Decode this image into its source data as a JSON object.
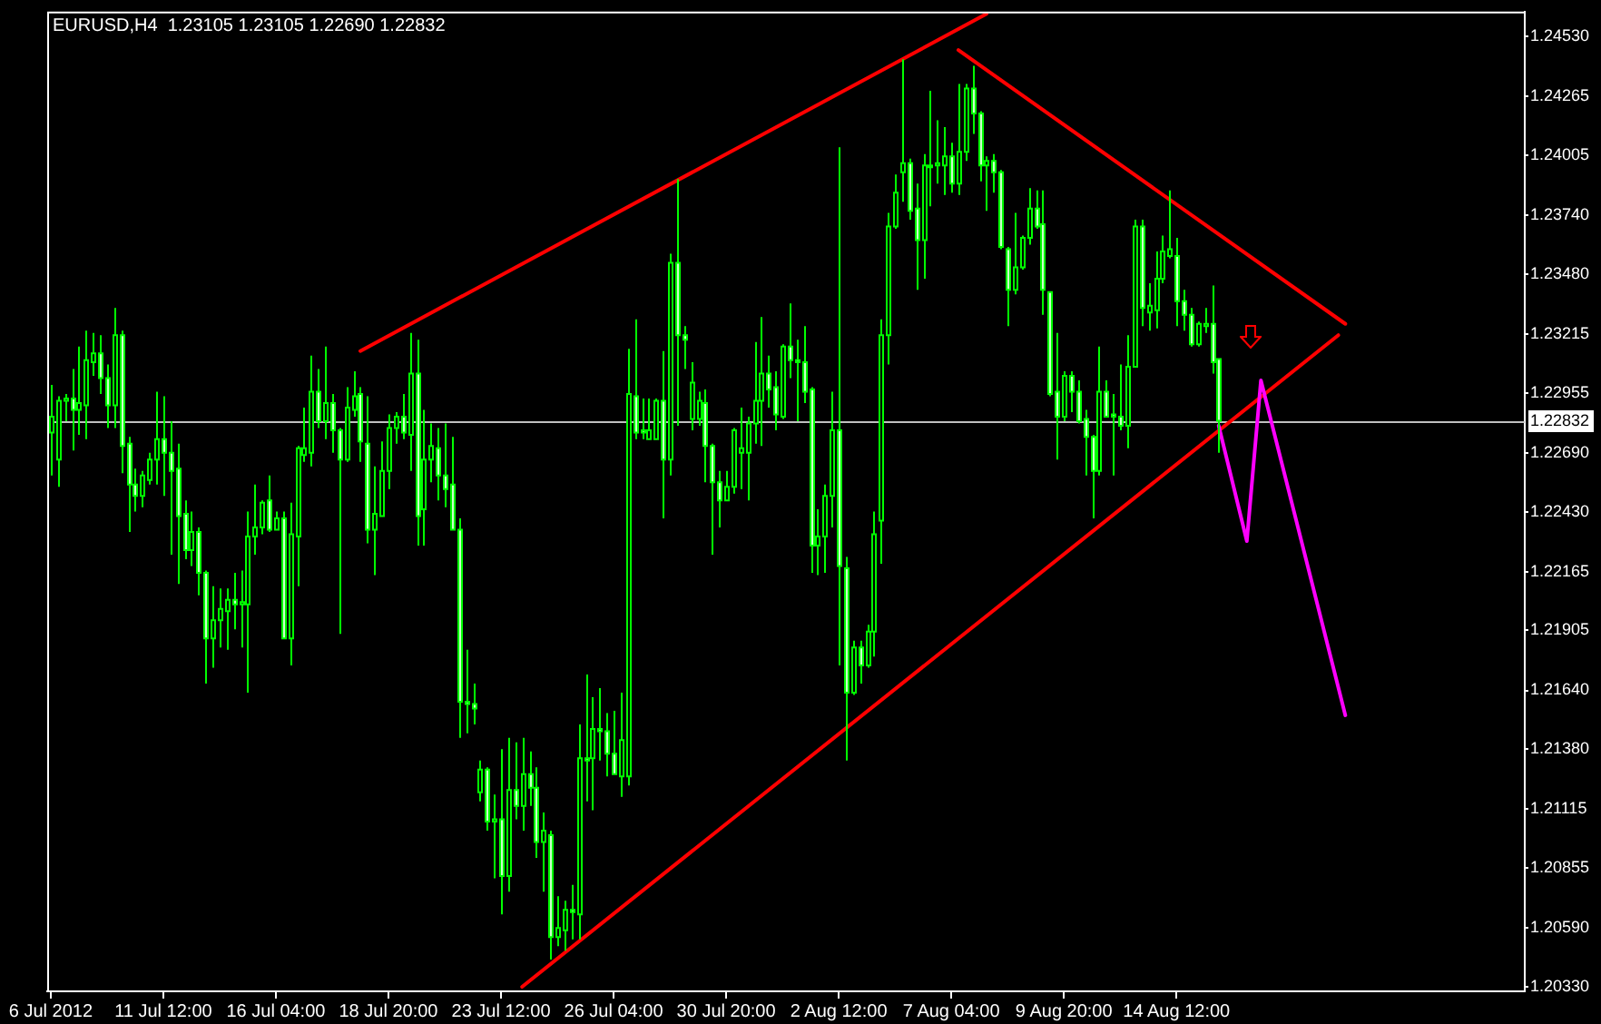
{
  "chart_data": {
    "type": "candlestick",
    "title": "EURUSD,H4  1.23105 1.23105 1.22690 1.22832",
    "color": "#00ff00",
    "categories": [
      "6 Jul 2012",
      null,
      null,
      null,
      null,
      null,
      null,
      null,
      null,
      null,
      null,
      null,
      null,
      null,
      null,
      null,
      "11 Jul 12:00",
      null,
      null,
      null,
      null,
      null,
      null,
      null,
      null,
      null,
      null,
      null,
      null,
      null,
      null,
      null,
      "16 Jul 04:00",
      null,
      null,
      null,
      null,
      null,
      null,
      null,
      null,
      null,
      null,
      null,
      null,
      null,
      null,
      null,
      "18 Jul 20:00",
      null,
      null,
      null,
      null,
      null,
      null,
      null,
      null,
      null,
      null,
      null,
      null,
      null,
      null,
      null,
      "23 Jul 12:00",
      null,
      null,
      null,
      null,
      null,
      null,
      null,
      null,
      null,
      null,
      null,
      null,
      null,
      null,
      null,
      "26 Jul 04:00",
      null,
      null,
      null,
      null,
      null,
      null,
      null,
      null,
      null,
      null,
      null,
      null,
      null,
      null,
      null,
      "30 Jul 20:00",
      null,
      null,
      null,
      null,
      null,
      null,
      null,
      null,
      null,
      null,
      null,
      null,
      null,
      null,
      null,
      "2 Aug 12:00",
      null,
      null,
      null,
      null,
      null,
      null,
      null,
      null,
      null,
      null,
      null,
      null,
      null,
      null,
      null,
      "7 Aug 04:00",
      null,
      null,
      null,
      null,
      null,
      null,
      null,
      null,
      null,
      null,
      null,
      null,
      null,
      null,
      null,
      "9 Aug 20:00",
      null,
      null,
      null,
      null,
      null,
      null,
      null,
      null,
      null,
      null,
      null,
      null,
      null,
      null,
      null,
      "14 Aug 12:00",
      null,
      null,
      null,
      null,
      null,
      null,
      null,
      null,
      null,
      null,
      null,
      null,
      null,
      null,
      null,
      null,
      null,
      null,
      null,
      null,
      null,
      null,
      null,
      null,
      null,
      null,
      null,
      null,
      null,
      null,
      null,
      null,
      null,
      null,
      null,
      null,
      null,
      null,
      null,
      null,
      null,
      null,
      null,
      null,
      null,
      null,
      null,
      null,
      null
    ],
    "ohlc": [
      [
        1.2278,
        1.2299,
        1.2259,
        1.2285
      ],
      [
        1.2266,
        1.2294,
        1.2254,
        1.2292
      ],
      [
        1.2292,
        1.2295,
        1.2283,
        1.2293
      ],
      [
        1.2293,
        1.2306,
        1.227,
        1.2288
      ],
      [
        1.2288,
        1.2316,
        1.2277,
        1.2291
      ],
      [
        1.229,
        1.2323,
        1.2275,
        1.231
      ],
      [
        1.2309,
        1.2322,
        1.2303,
        1.2313
      ],
      [
        1.2313,
        1.2321,
        1.2295,
        1.2302
      ],
      [
        1.2302,
        1.2308,
        1.228,
        1.229
      ],
      [
        1.229,
        1.2333,
        1.228,
        1.2321
      ],
      [
        1.2321,
        1.2323,
        1.226,
        1.2272
      ],
      [
        1.2273,
        1.2276,
        1.2234,
        1.2255
      ],
      [
        1.2255,
        1.2262,
        1.2243,
        1.225
      ],
      [
        1.225,
        1.2261,
        1.2245,
        1.2259
      ],
      [
        1.2257,
        1.2269,
        1.2255,
        1.2266
      ],
      [
        1.2266,
        1.2296,
        1.2255,
        1.2275
      ],
      [
        1.2275,
        1.2294,
        1.225,
        1.2269
      ],
      [
        1.2269,
        1.2283,
        1.2224,
        1.2261
      ],
      [
        1.2262,
        1.2273,
        1.2211,
        1.2241
      ],
      [
        1.2242,
        1.2248,
        1.2222,
        1.2226
      ],
      [
        1.2226,
        1.2243,
        1.2219,
        1.2234
      ],
      [
        1.2234,
        1.2236,
        1.2206,
        1.2216
      ],
      [
        1.2216,
        1.2217,
        1.2167,
        1.2187
      ],
      [
        1.2187,
        1.221,
        1.2174,
        1.2195
      ],
      [
        1.2195,
        1.2209,
        1.2183,
        1.22
      ],
      [
        1.2199,
        1.2209,
        1.2182,
        1.2204
      ],
      [
        1.2204,
        1.2216,
        1.2191,
        1.2202
      ],
      [
        1.2202,
        1.2217,
        1.2183,
        1.2203
      ],
      [
        1.2202,
        1.2243,
        1.2163,
        1.2232
      ],
      [
        1.2232,
        1.2255,
        1.2224,
        1.2236
      ],
      [
        1.2236,
        1.2248,
        1.2233,
        1.2247
      ],
      [
        1.2248,
        1.2259,
        1.2234,
        1.2235
      ],
      [
        1.2235,
        1.2243,
        1.2235,
        1.224
      ],
      [
        1.224,
        1.2243,
        1.2187,
        1.2187
      ],
      [
        1.2187,
        1.2247,
        1.2175,
        1.2233
      ],
      [
        1.2232,
        1.2272,
        1.221,
        1.2271
      ],
      [
        1.2268,
        1.2289,
        1.2265,
        1.2271
      ],
      [
        1.2269,
        1.2312,
        1.2263,
        1.2296
      ],
      [
        1.2296,
        1.2306,
        1.228,
        1.2283
      ],
      [
        1.2283,
        1.2316,
        1.2275,
        1.2291
      ],
      [
        1.2291,
        1.2295,
        1.2269,
        1.2279
      ],
      [
        1.2279,
        1.228,
        1.2189,
        1.2266
      ],
      [
        1.2266,
        1.2298,
        1.2265,
        1.2289
      ],
      [
        1.2288,
        1.2305,
        1.2285,
        1.2294
      ],
      [
        1.2295,
        1.2298,
        1.2265,
        1.2274
      ],
      [
        1.2273,
        1.2294,
        1.2229,
        1.2235
      ],
      [
        1.2235,
        1.2263,
        1.2215,
        1.2242
      ],
      [
        1.2241,
        1.2274,
        1.2241,
        1.2261
      ],
      [
        1.2261,
        1.2286,
        1.2253,
        1.228
      ],
      [
        1.228,
        1.2287,
        1.2273,
        1.2285
      ],
      [
        1.2285,
        1.2295,
        1.2275,
        1.2278
      ],
      [
        1.2277,
        1.2322,
        1.2261,
        1.2304
      ],
      [
        1.2304,
        1.2319,
        1.2228,
        1.2241
      ],
      [
        1.2244,
        1.2288,
        1.2228,
        1.2266
      ],
      [
        1.2266,
        1.2282,
        1.2256,
        1.2272
      ],
      [
        1.2271,
        1.228,
        1.2248,
        1.2259
      ],
      [
        1.2259,
        1.2282,
        1.2245,
        1.2253
      ],
      [
        1.2255,
        1.2276,
        1.2235,
        1.2235
      ],
      [
        1.2235,
        1.224,
        1.2143,
        1.2159
      ],
      [
        1.2159,
        1.2182,
        1.2145,
        1.2158
      ],
      [
        1.2158,
        1.2167,
        1.2149,
        1.2156
      ],
      [
        1.2119,
        1.2133,
        1.2115,
        1.2129
      ],
      [
        1.2129,
        1.213,
        1.2102,
        1.2106
      ],
      [
        1.2106,
        1.2118,
        1.2081,
        1.2107
      ],
      [
        1.2107,
        1.2138,
        1.2065,
        1.2082
      ],
      [
        1.2082,
        1.2143,
        1.2075,
        1.212
      ],
      [
        1.212,
        1.2141,
        1.2107,
        1.2113
      ],
      [
        1.2113,
        1.2143,
        1.2102,
        1.2127
      ],
      [
        1.2127,
        1.2137,
        1.2113,
        1.2121
      ],
      [
        1.2121,
        1.213,
        1.209,
        1.2097
      ],
      [
        1.2097,
        1.211,
        1.2075,
        1.2102
      ],
      [
        1.21,
        1.2102,
        1.2045,
        1.2055
      ],
      [
        1.2055,
        1.2073,
        1.2051,
        1.2059
      ],
      [
        1.2058,
        1.2071,
        1.2049,
        1.2067
      ],
      [
        1.2067,
        1.2078,
        1.2054,
        1.2066
      ],
      [
        1.2065,
        1.2149,
        1.2054,
        1.2134
      ],
      [
        1.2134,
        1.2171,
        1.2115,
        1.2133
      ],
      [
        1.2134,
        1.2161,
        1.2111,
        1.2147
      ],
      [
        1.2147,
        1.2165,
        1.2133,
        1.2146
      ],
      [
        1.2146,
        1.2154,
        1.2126,
        1.2136
      ],
      [
        1.2136,
        1.2155,
        1.2127,
        1.2127
      ],
      [
        1.2126,
        1.2163,
        1.2117,
        1.2142
      ],
      [
        1.2126,
        1.2315,
        1.2122,
        1.2295
      ],
      [
        1.2294,
        1.2328,
        1.2275,
        1.2278
      ],
      [
        1.2279,
        1.2293,
        1.2275,
        1.2278
      ],
      [
        1.2275,
        1.2293,
        1.2275,
        1.2279
      ],
      [
        1.2275,
        1.2293,
        1.2275,
        1.2292
      ],
      [
        1.2292,
        1.2314,
        1.224,
        1.2266
      ],
      [
        1.2266,
        1.2357,
        1.2259,
        1.2353
      ],
      [
        1.2353,
        1.239,
        1.2281,
        1.2321
      ],
      [
        1.2321,
        1.2325,
        1.2306,
        1.2319
      ],
      [
        1.2284,
        1.2309,
        1.2279,
        1.23
      ],
      [
        1.2284,
        1.2296,
        1.2281,
        1.2292
      ],
      [
        1.2291,
        1.2297,
        1.2256,
        1.2272
      ],
      [
        1.2272,
        1.2273,
        1.2224,
        1.2256
      ],
      [
        1.2256,
        1.2261,
        1.2236,
        1.2248
      ],
      [
        1.2248,
        1.2261,
        1.2248,
        1.2254
      ],
      [
        1.2254,
        1.228,
        1.2251,
        1.2279
      ],
      [
        1.2269,
        1.2289,
        1.2253,
        1.2271
      ],
      [
        1.2269,
        1.2285,
        1.2248,
        1.2282
      ],
      [
        1.2282,
        1.2318,
        1.2273,
        1.2292
      ],
      [
        1.2292,
        1.2329,
        1.2272,
        1.2304
      ],
      [
        1.2304,
        1.2312,
        1.2289,
        1.2297
      ],
      [
        1.2298,
        1.2305,
        1.2279,
        1.2286
      ],
      [
        1.2285,
        1.2317,
        1.2284,
        1.2316
      ],
      [
        1.2316,
        1.2335,
        1.2302,
        1.231
      ],
      [
        1.231,
        1.2319,
        1.2283,
        1.2309
      ],
      [
        1.2309,
        1.2325,
        1.2291,
        1.2296
      ],
      [
        1.2297,
        1.2298,
        1.2216,
        1.2228
      ],
      [
        1.2228,
        1.2244,
        1.2215,
        1.2232
      ],
      [
        1.2232,
        1.2255,
        1.2216,
        1.225
      ],
      [
        1.225,
        1.2296,
        1.2236,
        1.2279
      ],
      [
        1.2279,
        1.2404,
        1.2175,
        1.2219
      ],
      [
        1.2218,
        1.2223,
        1.2133,
        1.2163
      ],
      [
        1.2163,
        1.2186,
        1.2162,
        1.2183
      ],
      [
        1.2183,
        1.2186,
        1.2167,
        1.2175
      ],
      [
        1.2175,
        1.2193,
        1.2174,
        1.219
      ],
      [
        1.219,
        1.2243,
        1.2179,
        1.2233
      ],
      [
        1.2239,
        1.2328,
        1.222,
        1.2321
      ],
      [
        1.2321,
        1.2375,
        1.2308,
        1.2369
      ],
      [
        1.2369,
        1.2392,
        1.2368,
        1.2384
      ],
      [
        1.2393,
        1.2443,
        1.238,
        1.2397
      ],
      [
        1.2397,
        1.2399,
        1.2372,
        1.2376
      ],
      [
        1.2377,
        1.2388,
        1.2341,
        1.2363
      ],
      [
        1.2363,
        1.2401,
        1.2346,
        1.2396
      ],
      [
        1.2396,
        1.2429,
        1.2378,
        1.2396
      ],
      [
        1.2396,
        1.2416,
        1.2388,
        1.2397
      ],
      [
        1.2396,
        1.2413,
        1.2383,
        1.24
      ],
      [
        1.24,
        1.2406,
        1.2384,
        1.2388
      ],
      [
        1.2388,
        1.2432,
        1.2383,
        1.2402
      ],
      [
        1.2402,
        1.2432,
        1.2398,
        1.243
      ],
      [
        1.243,
        1.244,
        1.241,
        1.2419
      ],
      [
        1.2419,
        1.242,
        1.2389,
        1.2396
      ],
      [
        1.2396,
        1.24,
        1.2376,
        1.2398
      ],
      [
        1.2398,
        1.2401,
        1.2384,
        1.2393
      ],
      [
        1.2393,
        1.2394,
        1.2359,
        1.236
      ],
      [
        1.2359,
        1.236,
        1.2325,
        1.2341
      ],
      [
        1.2341,
        1.2375,
        1.2339,
        1.2351
      ],
      [
        1.2351,
        1.2365,
        1.235,
        1.2364
      ],
      [
        1.2364,
        1.2386,
        1.2361,
        1.2377
      ],
      [
        1.2377,
        1.2385,
        1.2368,
        1.2369
      ],
      [
        1.237,
        1.2385,
        1.233,
        1.2341
      ],
      [
        1.234,
        1.234,
        1.2294,
        1.2295
      ],
      [
        1.2296,
        1.2322,
        1.2266,
        1.2285
      ],
      [
        1.2285,
        1.2305,
        1.2283,
        1.2303
      ],
      [
        1.2303,
        1.2305,
        1.2287,
        1.2296
      ],
      [
        1.2296,
        1.2301,
        1.2282,
        1.2283
      ],
      [
        1.2284,
        1.2288,
        1.2259,
        1.2276
      ],
      [
        1.2276,
        1.2277,
        1.224,
        1.2261
      ],
      [
        1.2261,
        1.2316,
        1.2259,
        1.2296
      ],
      [
        1.2296,
        1.2301,
        1.2285,
        1.2285
      ],
      [
        1.2286,
        1.2295,
        1.2259,
        1.2285
      ],
      [
        1.2285,
        1.2308,
        1.2279,
        1.2281
      ],
      [
        1.2281,
        1.2321,
        1.2271,
        1.2307
      ],
      [
        1.2307,
        1.2372,
        1.2307,
        1.2369
      ],
      [
        1.2369,
        1.2372,
        1.2325,
        1.2333
      ],
      [
        1.2331,
        1.2344,
        1.2323,
        1.2334
      ],
      [
        1.2332,
        1.2358,
        1.2324,
        1.2346
      ],
      [
        1.2346,
        1.2365,
        1.2344,
        1.2358
      ],
      [
        1.2356,
        1.2385,
        1.2355,
        1.2359
      ],
      [
        1.2356,
        1.2364,
        1.2325,
        1.2336
      ],
      [
        1.2336,
        1.2341,
        1.2323,
        1.233
      ],
      [
        1.233,
        1.2333,
        1.2316,
        1.2317
      ],
      [
        1.2317,
        1.2327,
        1.2316,
        1.2326
      ],
      [
        1.2325,
        1.2333,
        1.2322,
        1.2326
      ],
      [
        1.2326,
        1.2343,
        1.2304,
        1.2309
      ],
      [
        1.23105,
        1.23105,
        1.2269,
        1.22832
      ],
      null,
      null,
      null,
      null,
      null,
      null,
      null,
      null,
      null,
      null,
      null,
      null,
      null,
      null,
      null,
      null,
      null,
      null,
      null,
      null,
      null,
      null,
      null,
      null,
      null,
      null,
      null,
      null,
      null,
      null,
      null,
      null,
      null,
      null,
      null,
      null,
      null,
      null,
      null,
      null,
      null,
      null,
      null
    ],
    "series": [
      {
        "type": "line",
        "color": "#ff0000",
        "values": [
          null,
          null,
          null,
          null,
          null,
          null,
          null,
          null,
          null,
          null,
          null,
          null,
          null,
          null,
          null,
          null,
          null,
          null,
          null,
          null,
          null,
          null,
          null,
          null,
          null,
          null,
          null,
          null,
          null,
          null,
          null,
          null,
          null,
          null,
          null,
          null,
          null,
          null,
          null,
          null,
          null,
          null,
          null,
          null,
          1.2314,
          null,
          null,
          null,
          null,
          null,
          null,
          null,
          null,
          null,
          null,
          null,
          null,
          null,
          null,
          null,
          null,
          null,
          null,
          null,
          null,
          null,
          null,
          null,
          null,
          null,
          null,
          null,
          null,
          null,
          null,
          null,
          null,
          null,
          null,
          null,
          null,
          null,
          null,
          null,
          null,
          null,
          null,
          null,
          null,
          null,
          null,
          null,
          null,
          null,
          null,
          null,
          null,
          null,
          null,
          null,
          null,
          null,
          null,
          null,
          null,
          null,
          null,
          null,
          null,
          null,
          null,
          null,
          null,
          null,
          null,
          null,
          null,
          null,
          null,
          null,
          null,
          null,
          null,
          null,
          null,
          null,
          null,
          null,
          null,
          null,
          null,
          null,
          null,
          1.2463,
          null,
          null,
          null,
          null,
          null,
          null,
          null,
          null,
          null,
          null,
          null,
          null,
          null,
          null,
          null,
          null,
          null,
          null,
          null,
          null,
          null,
          null,
          null,
          null,
          null,
          null,
          null,
          null,
          null,
          null,
          null,
          null,
          null,
          null,
          null,
          null,
          null,
          null,
          null,
          null,
          null,
          null,
          null,
          null,
          null,
          null,
          null,
          null,
          null,
          null,
          null,
          null,
          null,
          null,
          null,
          null,
          null,
          null,
          null,
          null,
          null,
          null,
          null,
          null,
          null,
          null,
          null,
          null,
          null,
          null,
          null,
          null,
          null,
          null,
          null,
          null
        ]
      },
      {
        "type": "line",
        "color": "#ff0000",
        "values": [
          null,
          null,
          null,
          null,
          null,
          null,
          null,
          null,
          null,
          null,
          null,
          null,
          null,
          null,
          null,
          null,
          null,
          null,
          null,
          null,
          null,
          null,
          null,
          null,
          null,
          null,
          null,
          null,
          null,
          null,
          null,
          null,
          null,
          null,
          null,
          null,
          null,
          null,
          null,
          null,
          null,
          null,
          null,
          null,
          null,
          null,
          null,
          null,
          null,
          null,
          null,
          null,
          null,
          null,
          null,
          null,
          null,
          null,
          null,
          null,
          null,
          null,
          null,
          null,
          null,
          null,
          null,
          null,
          null,
          null,
          null,
          null,
          null,
          null,
          null,
          null,
          null,
          null,
          null,
          null,
          null,
          null,
          null,
          null,
          null,
          null,
          null,
          null,
          null,
          null,
          null,
          null,
          null,
          null,
          null,
          null,
          null,
          null,
          null,
          null,
          null,
          null,
          null,
          null,
          null,
          null,
          null,
          null,
          null,
          null,
          null,
          null,
          null,
          null,
          null,
          null,
          null,
          null,
          null,
          null,
          null,
          null,
          null,
          null,
          null,
          null,
          null,
          null,
          null,
          1.2447,
          null,
          null,
          null,
          null,
          null,
          null,
          null,
          null,
          null,
          null,
          null,
          null,
          null,
          null,
          null,
          null,
          null,
          null,
          null,
          null,
          null,
          null,
          null,
          null,
          null,
          null,
          null,
          null,
          null,
          null,
          null,
          null,
          null,
          null,
          null,
          null,
          null,
          null,
          null,
          null,
          null,
          null,
          null,
          null,
          null,
          null,
          null,
          null,
          null,
          null,
          null,
          null,
          null,
          null,
          1.2326,
          null,
          null,
          null,
          null,
          null,
          null,
          null,
          null,
          null,
          null,
          null,
          null,
          null,
          null,
          null,
          null,
          null,
          null,
          null,
          null,
          null,
          null,
          null,
          null,
          null
        ]
      },
      {
        "type": "line",
        "color": "#ff0000",
        "values": [
          null,
          null,
          null,
          null,
          null,
          null,
          null,
          null,
          null,
          null,
          null,
          null,
          null,
          null,
          null,
          null,
          null,
          null,
          null,
          null,
          null,
          null,
          null,
          null,
          null,
          null,
          null,
          null,
          null,
          null,
          null,
          null,
          null,
          null,
          null,
          null,
          null,
          null,
          null,
          null,
          null,
          null,
          null,
          null,
          null,
          null,
          null,
          null,
          null,
          null,
          null,
          null,
          null,
          null,
          null,
          null,
          null,
          null,
          null,
          null,
          null,
          null,
          null,
          null,
          null,
          null,
          null,
          1.2033,
          null,
          null,
          null,
          null,
          null,
          null,
          null,
          null,
          null,
          null,
          null,
          null,
          null,
          null,
          null,
          null,
          null,
          null,
          null,
          null,
          null,
          null,
          null,
          null,
          null,
          null,
          null,
          null,
          null,
          null,
          null,
          null,
          null,
          null,
          null,
          null,
          null,
          null,
          null,
          null,
          null,
          null,
          null,
          null,
          null,
          null,
          null,
          null,
          null,
          null,
          null,
          null,
          null,
          null,
          null,
          null,
          null,
          null,
          null,
          null,
          null,
          null,
          null,
          null,
          null,
          null,
          null,
          null,
          null,
          null,
          null,
          null,
          null,
          null,
          null,
          null,
          null,
          null,
          null,
          null,
          null,
          null,
          null,
          null,
          null,
          null,
          null,
          null,
          null,
          null,
          null,
          null,
          null,
          null,
          null,
          null,
          null,
          null,
          null,
          null,
          null,
          null,
          null,
          null,
          null,
          null,
          null,
          null,
          null,
          null,
          null,
          null,
          null,
          null,
          null,
          1.2321,
          null,
          null,
          null,
          null,
          null,
          null,
          null,
          null,
          null,
          null,
          null,
          null,
          null,
          null,
          null,
          null,
          null,
          null,
          null,
          null,
          null,
          null,
          null,
          null,
          null,
          null
        ]
      },
      {
        "type": "line",
        "color": "#ff00ff",
        "values": [
          null,
          null,
          null,
          null,
          null,
          null,
          null,
          null,
          null,
          null,
          null,
          null,
          null,
          null,
          null,
          null,
          null,
          null,
          null,
          null,
          null,
          null,
          null,
          null,
          null,
          null,
          null,
          null,
          null,
          null,
          null,
          null,
          null,
          null,
          null,
          null,
          null,
          null,
          null,
          null,
          null,
          null,
          null,
          null,
          null,
          null,
          null,
          null,
          null,
          null,
          null,
          null,
          null,
          null,
          null,
          null,
          null,
          null,
          null,
          null,
          null,
          null,
          null,
          null,
          null,
          null,
          null,
          null,
          null,
          null,
          null,
          null,
          null,
          null,
          null,
          null,
          null,
          null,
          null,
          null,
          null,
          null,
          null,
          null,
          null,
          null,
          null,
          null,
          null,
          null,
          null,
          null,
          null,
          null,
          null,
          null,
          null,
          null,
          null,
          null,
          null,
          null,
          null,
          null,
          null,
          null,
          null,
          null,
          null,
          null,
          null,
          null,
          null,
          null,
          null,
          null,
          null,
          null,
          null,
          null,
          null,
          null,
          null,
          null,
          null,
          null,
          null,
          null,
          null,
          null,
          null,
          null,
          null,
          null,
          null,
          null,
          null,
          null,
          null,
          null,
          null,
          null,
          null,
          null,
          null,
          null,
          null,
          null,
          null,
          null,
          null,
          null,
          null,
          null,
          null,
          null,
          null,
          null,
          null,
          null,
          null,
          null,
          null,
          null,
          null,
          null,
          1.2281,
          null,
          null,
          null,
          1.223,
          null,
          1.2301,
          null,
          null,
          null,
          null,
          null,
          null,
          null,
          null,
          null,
          null,
          null,
          1.2153,
          null,
          null,
          null,
          null,
          null,
          null,
          null,
          null,
          null,
          null,
          null,
          null,
          null,
          null,
          null,
          null,
          null,
          null,
          null,
          null,
          null,
          null,
          null,
          null,
          null
        ]
      }
    ],
    "ylim": [
      1.2031,
      1.2464
    ],
    "yticks": [
      {
        "value": 1.2453,
        "label": "1.24530"
      },
      {
        "value": 1.24265,
        "label": "1.24265"
      },
      {
        "value": 1.24005,
        "label": "1.24005"
      },
      {
        "value": 1.2374,
        "label": "1.23740"
      },
      {
        "value": 1.2348,
        "label": "1.23480"
      },
      {
        "value": 1.23215,
        "label": "1.23215"
      },
      {
        "value": 1.22955,
        "label": "1.22955"
      },
      {
        "value": 1.2269,
        "label": "1.22690"
      },
      {
        "value": 1.2243,
        "label": "1.22430"
      },
      {
        "value": 1.22165,
        "label": "1.22165"
      },
      {
        "value": 1.21905,
        "label": "1.21905"
      },
      {
        "value": 1.2164,
        "label": "1.21640"
      },
      {
        "value": 1.2138,
        "label": "1.21380"
      },
      {
        "value": 1.21115,
        "label": "1.21115"
      },
      {
        "value": 1.20855,
        "label": "1.20855"
      },
      {
        "value": 1.2059,
        "label": "1.20590"
      },
      {
        "value": 1.2033,
        "label": "1.20330"
      }
    ],
    "ref_lines": [
      {
        "axis": "y",
        "value": 1.22832,
        "label": "1.22832",
        "color": "#c0c0c0"
      }
    ]
  }
}
